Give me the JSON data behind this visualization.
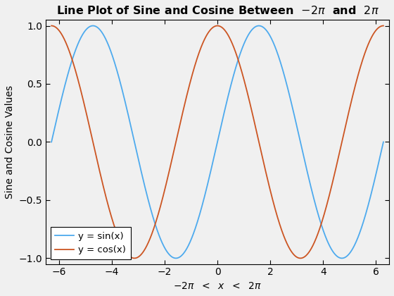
{
  "title": "Line Plot of Sine and Cosine Between  $-2\\pi$  and  $2\\pi$",
  "xlabel": "$-2\\pi$  $<$  $x$  $<$  $2\\pi$",
  "ylabel": "Sine and Cosine Values",
  "xlim": [
    -6.5,
    6.5
  ],
  "ylim": [
    -1.05,
    1.05
  ],
  "xticks": [
    -6,
    -4,
    -2,
    0,
    2,
    4,
    6
  ],
  "yticks": [
    -1,
    -0.5,
    0,
    0.5,
    1
  ],
  "sin_color": "#4DAAEE",
  "cos_color": "#CC5522",
  "sin_label": "y = sin(x)",
  "cos_label": "y = cos(x)",
  "line_width": 1.3,
  "n_points": 1000,
  "background_color": "#f0f0f0",
  "axes_background": "#f0f0f0",
  "legend_loc": "lower left",
  "title_fontsize": 11.5,
  "axis_label_fontsize": 10,
  "tick_fontsize": 10,
  "legend_fontsize": 9.5
}
